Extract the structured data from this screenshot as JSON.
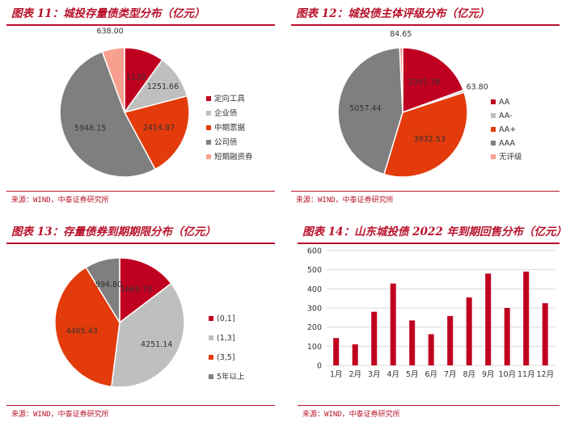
{
  "colors": {
    "accent": "#b8122a",
    "grid": "#d9d9d9"
  },
  "source": "来源：WIND，中泰证券研究所",
  "chart_data": [
    {
      "type": "pie",
      "title": "图表 11：城投存量债类型分布（亿元）",
      "categories": [
        "定向工具",
        "企业债",
        "中期票据",
        "公司债",
        "短期融资券"
      ],
      "values": [
        1130,
        1251.66,
        2414.87,
        5948.15,
        638.0
      ],
      "labels": [
        "1130",
        "1251.66",
        "2414.87",
        "5948.15",
        "638.00"
      ],
      "colors": [
        "#c00020",
        "#bfbfbf",
        "#e33b0c",
        "#7f7f7f",
        "#f8a090"
      ],
      "legend_position": "right"
    },
    {
      "type": "pie",
      "title": "图表 12：城投债主体评级分布（亿元）",
      "categories": [
        "AA",
        "AA-",
        "AA+",
        "AAA",
        "无评级"
      ],
      "values": [
        2201.78,
        63.8,
        3932.53,
        5057.44,
        84.65
      ],
      "labels": [
        "2201.78",
        "63.80",
        "3932.53",
        "5057.44",
        "84.65"
      ],
      "colors": [
        "#c00020",
        "#bfbfbf",
        "#e33b0c",
        "#7f7f7f",
        "#f8a090"
      ],
      "legend_position": "right"
    },
    {
      "type": "pie",
      "title": "图表 13：存量债券到期期限分布（亿元）",
      "categories": [
        "(0,1]",
        "(1,3]",
        "(3,5]",
        "5年以上"
      ],
      "values": [
        1669.73,
        4251.14,
        4465.43,
        994.8
      ],
      "labels": [
        "1669.73",
        "4251.14",
        "4465.43",
        "994.80"
      ],
      "colors": [
        "#c00020",
        "#bfbfbf",
        "#e33b0c",
        "#7f7f7f"
      ],
      "legend_position": "right"
    },
    {
      "type": "bar",
      "title": "图表 14：山东城投债 2022 年到期回售分布（亿元）",
      "categories": [
        "1月",
        "2月",
        "3月",
        "4月",
        "5月",
        "6月",
        "7月",
        "8月",
        "9月",
        "10月",
        "11月",
        "12月"
      ],
      "values": [
        143,
        110,
        280,
        428,
        235,
        163,
        258,
        355,
        480,
        300,
        490,
        325
      ],
      "ylim": [
        0,
        600
      ],
      "yticks": [
        "0",
        "100",
        "200",
        "300",
        "400",
        "500",
        "600"
      ],
      "grid": true,
      "color": "#c00020"
    }
  ]
}
